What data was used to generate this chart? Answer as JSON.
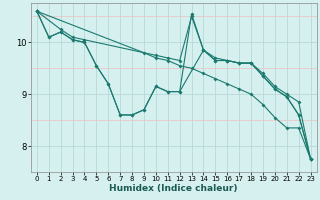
{
  "xlabel": "Humidex (Indice chaleur)",
  "background_color": "#d6f0f0",
  "grid_color_major": "#b8d8d8",
  "grid_color_minor": "#e8c8c8",
  "line_color": "#1a7a6e",
  "xlim": [
    -0.5,
    23.5
  ],
  "ylim": [
    7.55,
    10.75
  ],
  "xticks": [
    0,
    1,
    2,
    3,
    4,
    5,
    6,
    7,
    8,
    9,
    10,
    11,
    12,
    13,
    14,
    15,
    16,
    17,
    18,
    19,
    20,
    21,
    22,
    23
  ],
  "yticks": [
    8,
    9,
    10
  ],
  "minor_yticks": [
    7.5,
    8.5,
    9.5,
    10.5
  ],
  "lines": [
    {
      "x": [
        0,
        1,
        2,
        3,
        4,
        5,
        6,
        7,
        8,
        9,
        10,
        11,
        12,
        13,
        14,
        15,
        16,
        17,
        18,
        19,
        20,
        21,
        22,
        23
      ],
      "y": [
        10.6,
        10.1,
        10.2,
        10.05,
        10.0,
        9.55,
        9.2,
        8.6,
        8.6,
        8.7,
        9.15,
        9.05,
        9.05,
        10.55,
        9.85,
        9.65,
        9.65,
        9.6,
        9.6,
        9.35,
        9.1,
        8.95,
        8.6,
        7.75
      ]
    },
    {
      "x": [
        0,
        2,
        3,
        4,
        10,
        11,
        12,
        13,
        14,
        15,
        16,
        17,
        18,
        19,
        20,
        21,
        22,
        23
      ],
      "y": [
        10.6,
        10.25,
        10.1,
        10.05,
        9.75,
        9.7,
        9.65,
        10.5,
        9.85,
        9.7,
        9.65,
        9.6,
        9.6,
        9.4,
        9.15,
        9.0,
        8.85,
        7.75
      ]
    },
    {
      "x": [
        0,
        1,
        2,
        3,
        4,
        5,
        6,
        7,
        8,
        9,
        10,
        11,
        12,
        14,
        15,
        16,
        17,
        18,
        19,
        20,
        21,
        22,
        23
      ],
      "y": [
        10.6,
        10.1,
        10.2,
        10.05,
        10.0,
        9.55,
        9.2,
        8.6,
        8.6,
        8.7,
        9.15,
        9.05,
        9.05,
        9.85,
        9.65,
        9.65,
        9.6,
        9.6,
        9.35,
        9.1,
        8.95,
        8.6,
        7.75
      ]
    },
    {
      "x": [
        0,
        9,
        10,
        11,
        12,
        13,
        14,
        15,
        16,
        17,
        18,
        19,
        20,
        21,
        22,
        23
      ],
      "y": [
        10.6,
        9.8,
        9.7,
        9.65,
        9.55,
        9.5,
        9.4,
        9.3,
        9.2,
        9.1,
        9.0,
        8.8,
        8.55,
        8.35,
        8.35,
        7.75
      ]
    }
  ]
}
